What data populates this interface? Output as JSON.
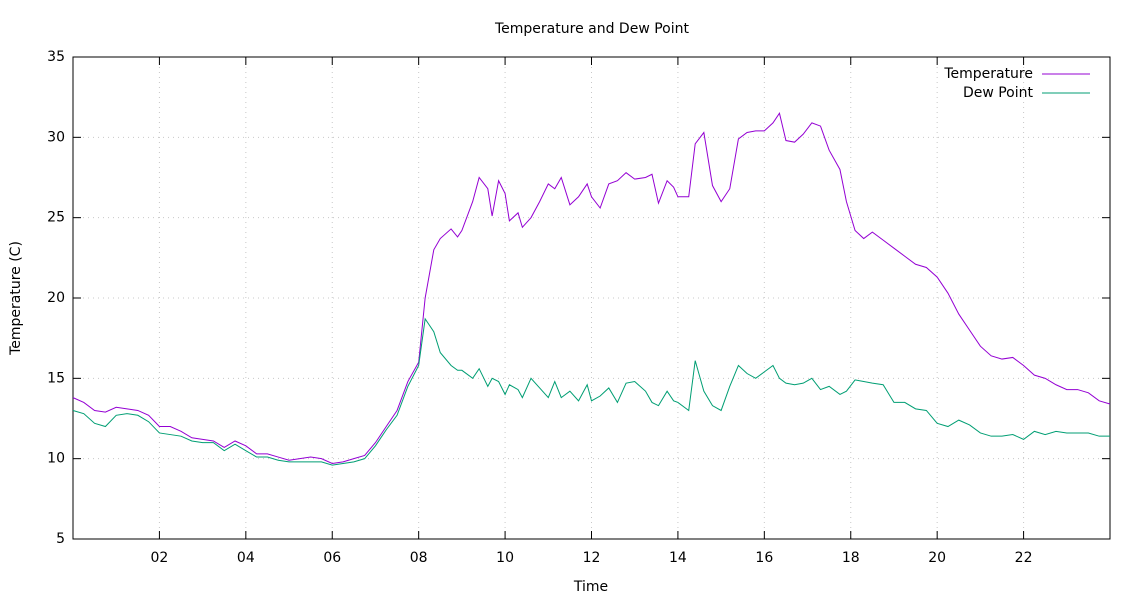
{
  "chart_data": {
    "type": "line",
    "title": "Temperature and Dew Point",
    "x_label": "Time",
    "y_label": "Temperature (C)",
    "x": [
      0,
      0.25,
      0.5,
      0.75,
      1,
      1.25,
      1.5,
      1.75,
      2,
      2.25,
      2.5,
      2.75,
      3,
      3.25,
      3.5,
      3.75,
      4,
      4.25,
      4.5,
      4.75,
      5,
      5.25,
      5.5,
      5.75,
      6,
      6.25,
      6.5,
      6.75,
      7,
      7.25,
      7.5,
      7.75,
      8,
      8.15,
      8.35,
      8.5,
      8.75,
      8.9,
      9,
      9.25,
      9.4,
      9.6,
      9.7,
      9.85,
      10,
      10.1,
      10.3,
      10.4,
      10.6,
      10.8,
      11,
      11.15,
      11.3,
      11.5,
      11.7,
      11.9,
      12,
      12.2,
      12.4,
      12.6,
      12.8,
      13,
      13.25,
      13.4,
      13.55,
      13.75,
      13.9,
      14,
      14.25,
      14.4,
      14.6,
      14.8,
      15,
      15.2,
      15.4,
      15.6,
      15.8,
      16,
      16.2,
      16.35,
      16.5,
      16.7,
      16.9,
      17.1,
      17.3,
      17.5,
      17.75,
      17.9,
      18.1,
      18.3,
      18.5,
      18.75,
      19,
      19.25,
      19.5,
      19.75,
      20,
      20.25,
      20.5,
      20.75,
      21,
      21.25,
      21.5,
      21.75,
      22,
      22.25,
      22.5,
      22.75,
      23,
      23.25,
      23.5,
      23.75,
      24
    ],
    "series": [
      {
        "name": "Temperature",
        "color": "#9400d3",
        "values": [
          13.8,
          13.5,
          13.0,
          12.9,
          13.2,
          13.1,
          13.0,
          12.7,
          12.0,
          12.0,
          11.7,
          11.3,
          11.2,
          11.1,
          10.7,
          11.1,
          10.8,
          10.3,
          10.3,
          10.1,
          9.9,
          10.0,
          10.1,
          10.0,
          9.7,
          9.8,
          10.0,
          10.2,
          11.0,
          12.0,
          13.0,
          14.8,
          16.0,
          20.0,
          23.0,
          23.7,
          24.3,
          23.8,
          24.2,
          26.0,
          27.5,
          26.8,
          25.1,
          27.3,
          26.5,
          24.8,
          25.3,
          24.4,
          25.0,
          26.0,
          27.1,
          26.8,
          27.5,
          25.8,
          26.3,
          27.1,
          26.3,
          25.6,
          27.1,
          27.3,
          27.8,
          27.4,
          27.5,
          27.7,
          25.9,
          27.3,
          26.9,
          26.3,
          26.3,
          29.6,
          30.3,
          27.0,
          26.0,
          26.8,
          29.9,
          30.3,
          30.4,
          30.4,
          30.9,
          31.5,
          29.8,
          29.7,
          30.2,
          30.9,
          30.7,
          29.2,
          28.0,
          26.0,
          24.2,
          23.7,
          24.1,
          23.6,
          23.1,
          22.6,
          22.1,
          21.9,
          21.3,
          20.3,
          19.0,
          18.0,
          17.0,
          16.4,
          16.2,
          16.3,
          15.8,
          15.2,
          15.0,
          14.6,
          14.3,
          14.3,
          14.1,
          13.6,
          13.4
        ]
      },
      {
        "name": "Dew Point",
        "color": "#009e73",
        "values": [
          13.0,
          12.8,
          12.2,
          12.0,
          12.7,
          12.8,
          12.7,
          12.3,
          11.6,
          11.5,
          11.4,
          11.1,
          11.0,
          11.0,
          10.5,
          10.9,
          10.5,
          10.1,
          10.1,
          9.9,
          9.8,
          9.8,
          9.8,
          9.8,
          9.6,
          9.7,
          9.8,
          10.0,
          10.8,
          11.8,
          12.7,
          14.5,
          15.8,
          18.7,
          17.9,
          16.6,
          15.8,
          15.5,
          15.5,
          15.0,
          15.6,
          14.5,
          15.0,
          14.8,
          14.0,
          14.6,
          14.3,
          13.8,
          15.0,
          14.4,
          13.8,
          14.8,
          13.8,
          14.2,
          13.6,
          14.6,
          13.6,
          13.9,
          14.4,
          13.5,
          14.7,
          14.8,
          14.2,
          13.5,
          13.3,
          14.2,
          13.6,
          13.5,
          13.0,
          16.1,
          14.2,
          13.3,
          13.0,
          14.5,
          15.8,
          15.3,
          15.0,
          15.4,
          15.8,
          15.0,
          14.7,
          14.6,
          14.7,
          15.0,
          14.3,
          14.5,
          14.0,
          14.2,
          14.9,
          14.8,
          14.7,
          14.6,
          13.5,
          13.5,
          13.1,
          13.0,
          12.2,
          12.0,
          12.4,
          12.1,
          11.6,
          11.4,
          11.4,
          11.5,
          11.2,
          11.7,
          11.5,
          11.7,
          11.6,
          11.6,
          11.6,
          11.4,
          11.4
        ]
      }
    ],
    "xlim": [
      0,
      24
    ],
    "xticks": [
      {
        "value": 2,
        "label": "02"
      },
      {
        "value": 4,
        "label": "04"
      },
      {
        "value": 6,
        "label": "06"
      },
      {
        "value": 8,
        "label": "08"
      },
      {
        "value": 10,
        "label": "10"
      },
      {
        "value": 12,
        "label": "12"
      },
      {
        "value": 14,
        "label": "14"
      },
      {
        "value": 16,
        "label": "16"
      },
      {
        "value": 18,
        "label": "18"
      },
      {
        "value": 20,
        "label": "20"
      },
      {
        "value": 22,
        "label": "22"
      }
    ],
    "ylim": [
      5,
      35
    ],
    "yticks": [
      5,
      10,
      15,
      20,
      25,
      30,
      35
    ],
    "grid": true,
    "legend": "top-right"
  }
}
